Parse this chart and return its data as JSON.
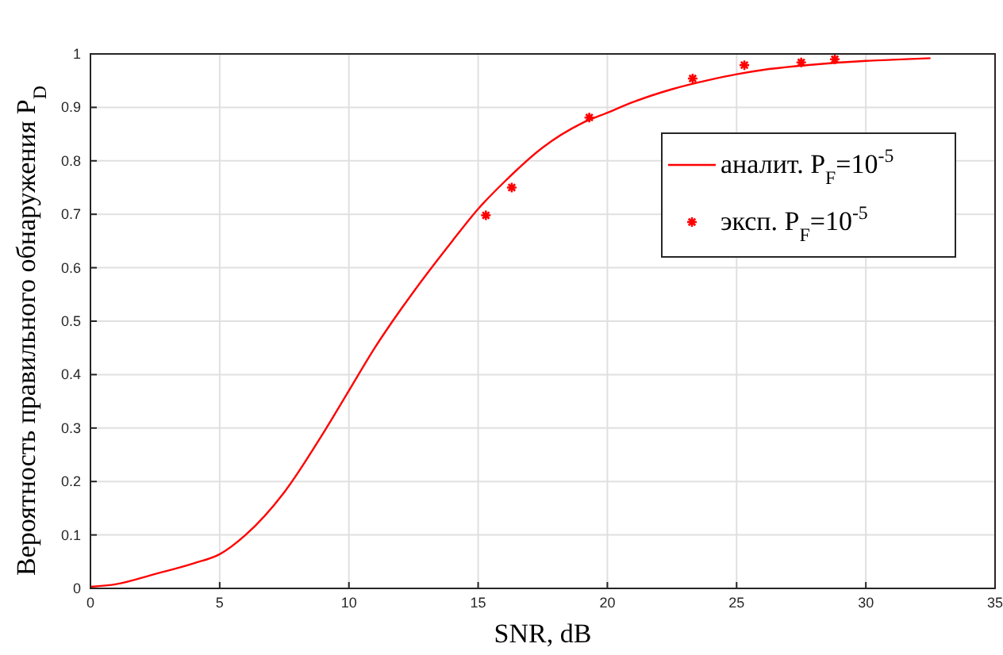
{
  "chart_data": {
    "type": "line",
    "xlabel": "SNR, dB",
    "ylabel": "Вероятность правильного обнаружения P$_{D}$",
    "xlim": [
      0,
      35
    ],
    "ylim": [
      0,
      1
    ],
    "xticks": [
      0,
      5,
      10,
      15,
      20,
      25,
      30,
      35
    ],
    "yticks": [
      0,
      0.1,
      0.2,
      0.3,
      0.4,
      0.5,
      0.6,
      0.7,
      0.8,
      0.9,
      1
    ],
    "grid": true,
    "legend": "top right",
    "series": [
      {
        "name": "аналит. P$_{F}$=10$^{-5}$",
        "color": "#ff0000",
        "x": [
          0,
          1,
          2.5,
          4,
          5,
          6,
          7.5,
          9,
          10,
          11,
          12.5,
          14,
          15,
          16,
          17.5,
          19,
          20,
          21,
          22.5,
          24,
          25,
          26,
          27.5,
          29,
          30,
          31,
          32.5
        ],
        "values": [
          0.003,
          0.008,
          0.027,
          0.047,
          0.064,
          0.1,
          0.18,
          0.29,
          0.37,
          0.45,
          0.555,
          0.65,
          0.71,
          0.76,
          0.825,
          0.87,
          0.89,
          0.91,
          0.934,
          0.952,
          0.962,
          0.97,
          0.978,
          0.984,
          0.987,
          0.989,
          0.992
        ]
      },
      {
        "name": "эксп. P$_{F}$=10$^{-5}$",
        "type": "scatter",
        "color": "#ff0000",
        "marker": "cross",
        "x": [
          15.3,
          16.3,
          19.3,
          23.3,
          25.3,
          27.5,
          28.8
        ],
        "values": [
          0.698,
          0.75,
          0.881,
          0.954,
          0.979,
          0.984,
          0.99
        ]
      }
    ]
  }
}
